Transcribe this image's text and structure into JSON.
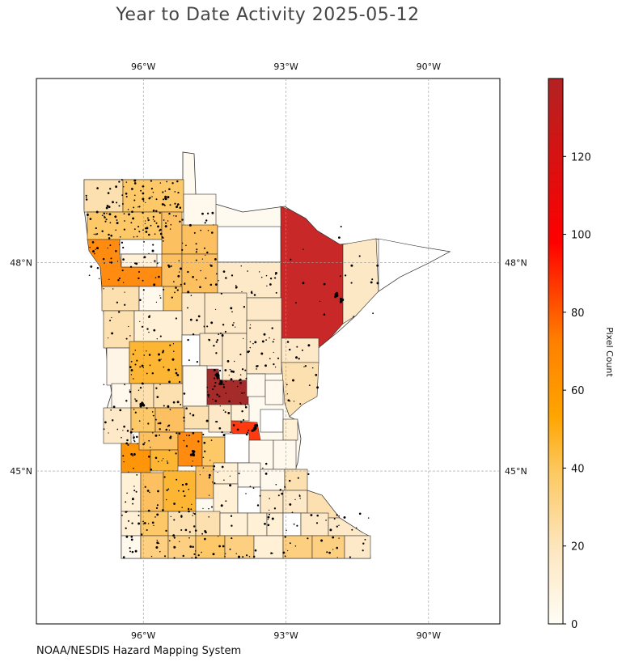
{
  "title": "Year to Date Activity 2025-05-12",
  "credit": "NOAA/NESDIS Hazard Mapping System",
  "map": {
    "lon_ticks": [
      {
        "value": -96,
        "label": "96°W"
      },
      {
        "value": -93,
        "label": "93°W"
      },
      {
        "value": -90,
        "label": "90°W"
      }
    ],
    "lat_ticks": [
      {
        "value": 48,
        "label": "48°N"
      },
      {
        "value": 45,
        "label": "45°N"
      }
    ],
    "extent": {
      "lon_min": -98.25,
      "lon_max": -88.5,
      "lat_min": 42.8,
      "lat_max": 50.65
    },
    "state": "Minnesota",
    "grid": true
  },
  "colorbar": {
    "label": "Pixel Count",
    "min": 0,
    "max": 140,
    "ticks": [
      {
        "value": 0,
        "label": "0"
      },
      {
        "value": 20,
        "label": "20"
      },
      {
        "value": 40,
        "label": "40"
      },
      {
        "value": 60,
        "label": "60"
      },
      {
        "value": 80,
        "label": "80"
      },
      {
        "value": 100,
        "label": "100"
      },
      {
        "value": 120,
        "label": "120"
      }
    ],
    "colors": [
      "#fffdf6",
      "#fde6be",
      "#fdc860",
      "#ffa500",
      "#ff7f00",
      "#ff0000",
      "#b22222"
    ]
  }
}
